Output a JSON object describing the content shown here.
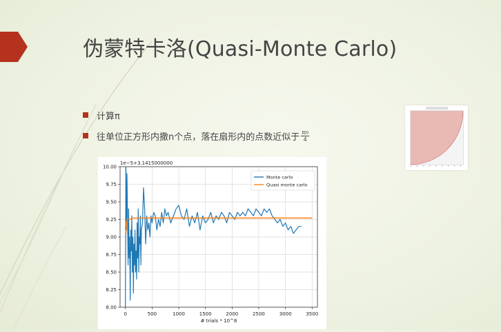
{
  "slide": {
    "title": "伪蒙特卡洛(Quasi-Monte Carlo)",
    "bullets": [
      {
        "text": "计算π"
      },
      {
        "text": "往单位正方形内撒n个点，落在扇形内的点数近似于",
        "frac_num": "πn",
        "frac_den": "4"
      }
    ],
    "colors": {
      "accent": "#b5321e",
      "background": "#eef2e2",
      "title": "#444444"
    }
  },
  "chart_data": {
    "type": "line",
    "offset_label": "1e−5+3.1415000000",
    "xlabel": "# trials * 10^8",
    "ylabel": "",
    "xlim": [
      -100,
      3600
    ],
    "ylim": [
      8.0,
      10.0
    ],
    "x_ticks": [
      0,
      500,
      1000,
      1500,
      2000,
      2500,
      3000,
      3500
    ],
    "y_ticks": [
      8.0,
      8.25,
      8.5,
      8.75,
      9.0,
      9.25,
      9.5,
      9.75,
      10.0
    ],
    "y_tick_labels": [
      "8.00",
      "8.25",
      "8.50",
      "8.75",
      "9.00",
      "9.25",
      "9.50",
      "9.75",
      "10.00"
    ],
    "grid": true,
    "legend_position": "top-right",
    "series": [
      {
        "name": "Monte carlo",
        "color": "#1f77b4",
        "x": [
          0,
          10,
          20,
          30,
          40,
          50,
          60,
          70,
          80,
          90,
          100,
          110,
          120,
          130,
          140,
          150,
          160,
          170,
          180,
          190,
          200,
          210,
          220,
          230,
          240,
          250,
          260,
          270,
          280,
          290,
          300,
          320,
          340,
          360,
          380,
          400,
          420,
          440,
          460,
          480,
          500,
          530,
          560,
          590,
          620,
          650,
          680,
          710,
          740,
          770,
          800,
          850,
          900,
          950,
          1000,
          1050,
          1100,
          1150,
          1200,
          1250,
          1300,
          1350,
          1400,
          1450,
          1500,
          1550,
          1600,
          1650,
          1700,
          1750,
          1800,
          1850,
          1900,
          1950,
          2000,
          2050,
          2100,
          2150,
          2200,
          2250,
          2300,
          2350,
          2400,
          2450,
          2500,
          2550,
          2600,
          2650,
          2700,
          2750,
          2800,
          2850,
          2900,
          2950,
          3000,
          3050,
          3100,
          3150,
          3200,
          3250,
          3300
        ],
        "values": [
          8.0,
          10.0,
          9.1,
          9.9,
          9.3,
          8.6,
          9.4,
          8.7,
          9.0,
          8.1,
          9.1,
          8.8,
          9.3,
          8.5,
          9.0,
          8.2,
          8.9,
          8.6,
          9.1,
          8.5,
          8.8,
          8.4,
          9.2,
          8.7,
          9.4,
          8.5,
          9.0,
          8.9,
          9.3,
          8.6,
          9.1,
          9.2,
          9.7,
          9.4,
          8.9,
          9.3,
          9.1,
          9.2,
          9.0,
          9.3,
          9.2,
          9.35,
          9.3,
          9.1,
          9.25,
          9.15,
          9.35,
          9.2,
          9.4,
          9.3,
          9.35,
          9.2,
          9.3,
          9.4,
          9.45,
          9.3,
          9.25,
          9.4,
          9.15,
          9.3,
          9.2,
          9.35,
          9.1,
          9.3,
          9.2,
          9.25,
          9.35,
          9.2,
          9.3,
          9.25,
          9.35,
          9.3,
          9.2,
          9.35,
          9.3,
          9.25,
          9.35,
          9.3,
          9.35,
          9.3,
          9.4,
          9.35,
          9.3,
          9.4,
          9.35,
          9.3,
          9.4,
          9.35,
          9.4,
          9.3,
          9.25,
          9.2,
          9.25,
          9.15,
          9.2,
          9.1,
          9.15,
          9.05,
          9.1,
          9.15,
          9.15
        ]
      },
      {
        "name": "Quasi monte carlo",
        "color": "#ff7f0e",
        "x": [
          0,
          5,
          10,
          20,
          40,
          80,
          150,
          300,
          600,
          1000,
          1500,
          2000,
          2500,
          3000,
          3500
        ],
        "values": [
          9.1,
          9.2,
          9.05,
          9.22,
          9.26,
          9.25,
          9.27,
          9.27,
          9.27,
          9.27,
          9.27,
          9.27,
          9.27,
          9.27,
          9.27
        ]
      }
    ]
  }
}
